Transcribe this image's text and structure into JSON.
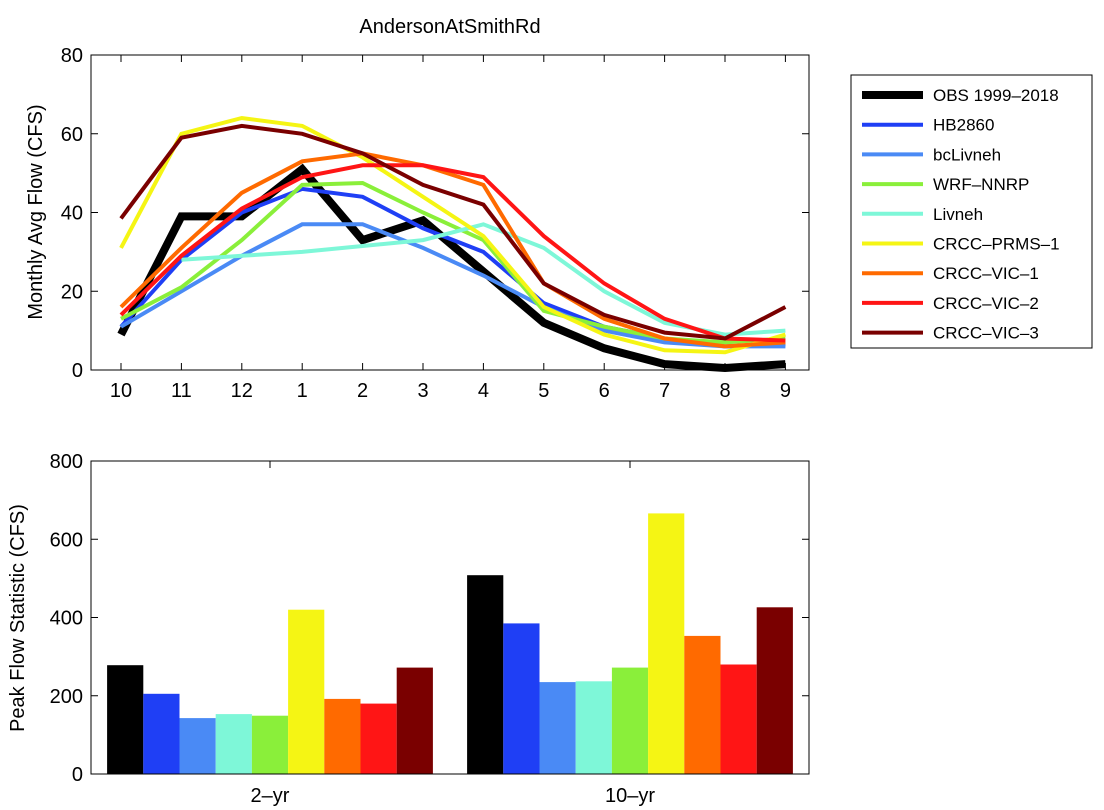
{
  "chart_data": [
    {
      "type": "line",
      "title": "AndersonAtSmithRd",
      "xlabel": "",
      "ylabel": "Monthly Avg Flow (CFS)",
      "ylim": [
        0,
        80
      ],
      "yticks": [
        0,
        20,
        40,
        60,
        80
      ],
      "categories": [
        "10",
        "11",
        "12",
        "1",
        "2",
        "3",
        "4",
        "5",
        "6",
        "7",
        "8",
        "9"
      ],
      "legend_position": "outside-right",
      "series": [
        {
          "name": "OBS 1999–2018",
          "color": "#000000",
          "values": [
            9,
            39,
            39,
            51,
            33,
            38,
            25,
            12,
            5.5,
            1.5,
            0.5,
            1.5
          ]
        },
        {
          "name": "HB2860",
          "color": "#1f3ff5",
          "values": [
            11,
            28,
            40,
            46,
            44,
            36,
            30,
            17,
            11,
            8,
            6,
            6.5
          ]
        },
        {
          "name": "bcLivneh",
          "color": "#4a8af5",
          "values": [
            11,
            20,
            29,
            37,
            37,
            31,
            24,
            16,
            10,
            7,
            6,
            6
          ]
        },
        {
          "name": "WRF–NNRP",
          "color": "#8aef3a",
          "values": [
            13,
            21,
            33,
            47,
            47.5,
            40,
            33,
            15,
            11,
            8,
            7,
            8
          ]
        },
        {
          "name": "Livneh",
          "color": "#7ef7d8",
          "values": [
            null,
            28,
            29,
            30,
            31.5,
            33,
            37,
            31,
            20,
            12,
            9,
            10
          ]
        },
        {
          "name": "CRCC–PRMS–1",
          "color": "#f5f514",
          "values": [
            31,
            60,
            64,
            62,
            54,
            44,
            34,
            16,
            9,
            5,
            4.5,
            9
          ]
        },
        {
          "name": "CRCC–VIC–1",
          "color": "#ff6a00",
          "values": [
            16,
            31,
            45,
            53,
            55,
            52,
            47,
            22,
            13,
            8,
            6,
            7
          ]
        },
        {
          "name": "CRCC–VIC–2",
          "color": "#ff1515",
          "values": [
            14,
            29,
            41,
            49,
            52,
            52,
            49,
            34,
            22,
            13,
            8,
            7.5
          ]
        },
        {
          "name": "CRCC–VIC–3",
          "color": "#7a0000",
          "values": [
            38.5,
            59,
            62,
            60,
            55,
            47,
            42,
            22,
            14,
            9.5,
            8,
            16
          ]
        }
      ]
    },
    {
      "type": "bar",
      "title": "",
      "xlabel": "",
      "ylabel": "Peak Flow Statistic (CFS)",
      "ylim": [
        0,
        800
      ],
      "yticks": [
        0,
        200,
        400,
        600,
        800
      ],
      "categories": [
        "2–yr",
        "10–yr"
      ],
      "series": [
        {
          "color": "#000000",
          "values": [
            278,
            508
          ]
        },
        {
          "color": "#1f3ff5",
          "values": [
            205,
            385
          ]
        },
        {
          "color": "#4a8af5",
          "values": [
            143,
            235
          ]
        },
        {
          "color": "#7ef7d8",
          "values": [
            153,
            237
          ]
        },
        {
          "color": "#8aef3a",
          "values": [
            149,
            272
          ]
        },
        {
          "color": "#f5f514",
          "values": [
            420,
            666
          ]
        },
        {
          "color": "#ff6a00",
          "values": [
            192,
            353
          ]
        },
        {
          "color": "#ff1515",
          "values": [
            180,
            280
          ]
        },
        {
          "color": "#7a0000",
          "values": [
            272,
            426
          ]
        }
      ]
    }
  ]
}
